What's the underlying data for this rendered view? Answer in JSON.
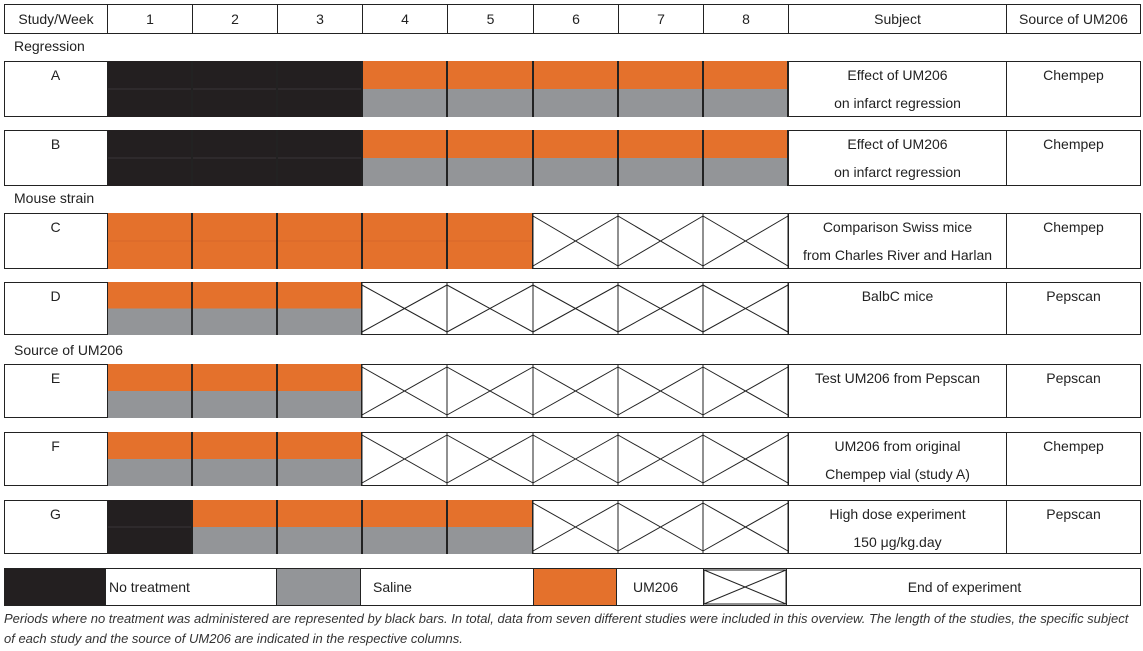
{
  "colors": {
    "none": "#231f20",
    "saline": "#939598",
    "um206": "#e4712c",
    "line": "#222222"
  },
  "header": {
    "study_week": "Study/Week",
    "weeks": [
      "1",
      "2",
      "3",
      "4",
      "5",
      "6",
      "7",
      "8"
    ],
    "subject": "Subject",
    "source": "Source of UM206"
  },
  "sections": {
    "regression": "Regression",
    "mouse_strain": "Mouse strain",
    "source_um206": "Source of UM206"
  },
  "studies": [
    {
      "id": "A",
      "subject": [
        "Effect of UM206",
        "on infarct regression"
      ],
      "source": "Chempep",
      "weeks": [
        "none",
        "none",
        "none",
        "split",
        "split",
        "split",
        "split",
        "split"
      ]
    },
    {
      "id": "B",
      "subject": [
        "Effect of UM206",
        "on infarct regression"
      ],
      "source": "Chempep",
      "weeks": [
        "none",
        "none",
        "none",
        "split",
        "split",
        "split",
        "split",
        "split"
      ]
    },
    {
      "id": "C",
      "subject": [
        "Comparison Swiss mice",
        "from Charles River and Harlan"
      ],
      "source": "Chempep",
      "weeks": [
        "um206",
        "um206",
        "um206",
        "um206",
        "um206",
        "end",
        "end",
        "end"
      ]
    },
    {
      "id": "D",
      "subject": [
        "BalbC mice"
      ],
      "source": "Pepscan",
      "weeks": [
        "split",
        "split",
        "split",
        "end",
        "end",
        "end",
        "end",
        "end"
      ]
    },
    {
      "id": "E",
      "subject": [
        "Test UM206 from Pepscan"
      ],
      "source": "Pepscan",
      "weeks": [
        "split",
        "split",
        "split",
        "end",
        "end",
        "end",
        "end",
        "end"
      ]
    },
    {
      "id": "F",
      "subject": [
        "UM206 from original",
        "Chempep vial (study A)"
      ],
      "source": "Chempep",
      "weeks": [
        "split",
        "split",
        "split",
        "end",
        "end",
        "end",
        "end",
        "end"
      ]
    },
    {
      "id": "G",
      "subject": [
        "High dose experiment",
        "150 μg/kg.day"
      ],
      "source": "Pepscan",
      "weeks": [
        "none",
        "split",
        "split",
        "split",
        "split",
        "end",
        "end",
        "end"
      ]
    }
  ],
  "legend": {
    "no_treatment": "No treatment",
    "saline": "Saline",
    "um206": "UM206",
    "end": "End of experiment"
  },
  "caption": "Periods where no treatment was administered are represented by black bars. In total, data from seven different studies were included in this overview. The length of the studies, the specific subject of each study and the source of UM206 are indicated in the respective columns."
}
